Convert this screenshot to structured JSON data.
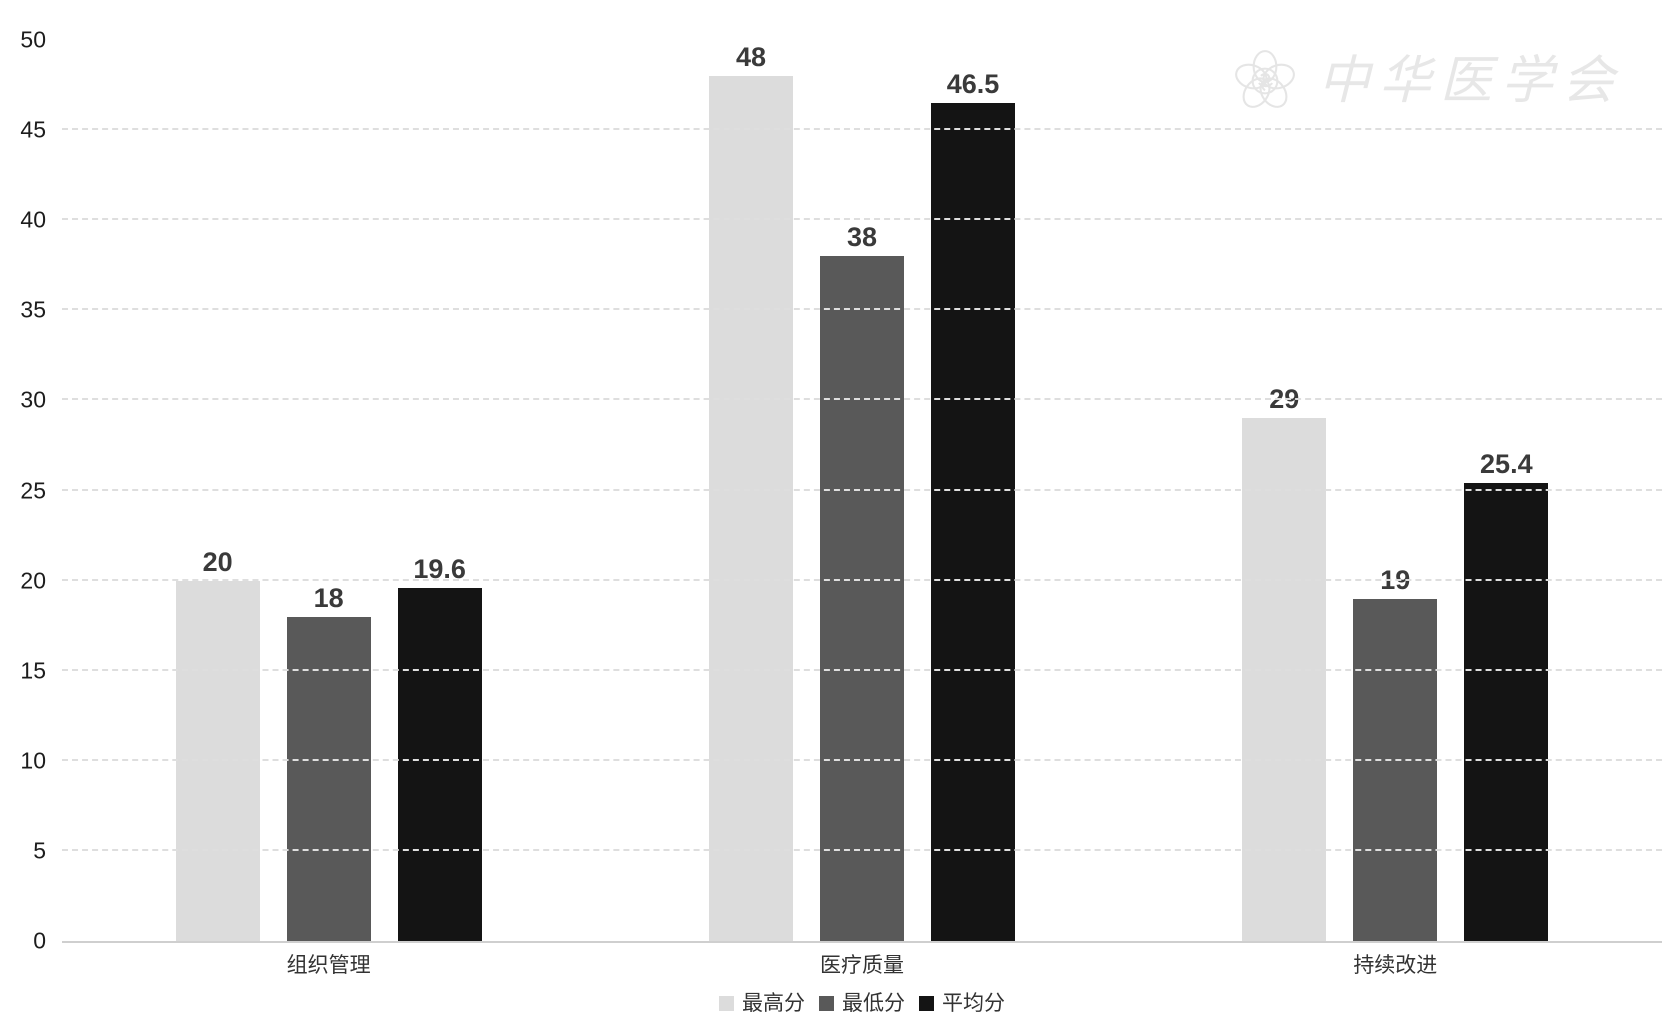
{
  "watermark": {
    "text": "中华医学会",
    "logo": "chinese-medical-association-emblem"
  },
  "colors": {
    "background": "#ffffff",
    "grid": "#dedede",
    "axis_line": "#cfcfcf",
    "ytick_label": "#1c1c1c",
    "value_label": "#3a3a3a",
    "category_label": "#333333",
    "legend_label": "#333333",
    "watermark": "#e7e7e7",
    "series_highest": "#dcdcdc",
    "series_lowest": "#595959",
    "series_average": "#141414"
  },
  "chart_data": {
    "type": "bar",
    "title": "",
    "xlabel": "",
    "ylabel": "",
    "categories": [
      "组织管理",
      "医疗质量",
      "持续改进"
    ],
    "series": [
      {
        "name": "最高分",
        "color": "#dcdcdc",
        "values": [
          20,
          48,
          29
        ],
        "value_labels": [
          "20",
          "48",
          "29"
        ]
      },
      {
        "name": "最低分",
        "color": "#595959",
        "values": [
          18,
          38,
          19
        ],
        "value_labels": [
          "18",
          "38",
          "19"
        ]
      },
      {
        "name": "平均分",
        "color": "#141414",
        "values": [
          19.6,
          46.5,
          25.4
        ],
        "value_labels": [
          "19.6",
          "46.5",
          "25.4"
        ]
      }
    ],
    "ylim": [
      0,
      50
    ],
    "yticks": [
      0,
      5,
      10,
      15,
      20,
      25,
      30,
      35,
      40,
      45,
      50
    ],
    "grid": "horizontal-dashed",
    "grid_top_tick_line": false,
    "legend_position": "bottom-center",
    "bar_value_labels_shown": true
  }
}
